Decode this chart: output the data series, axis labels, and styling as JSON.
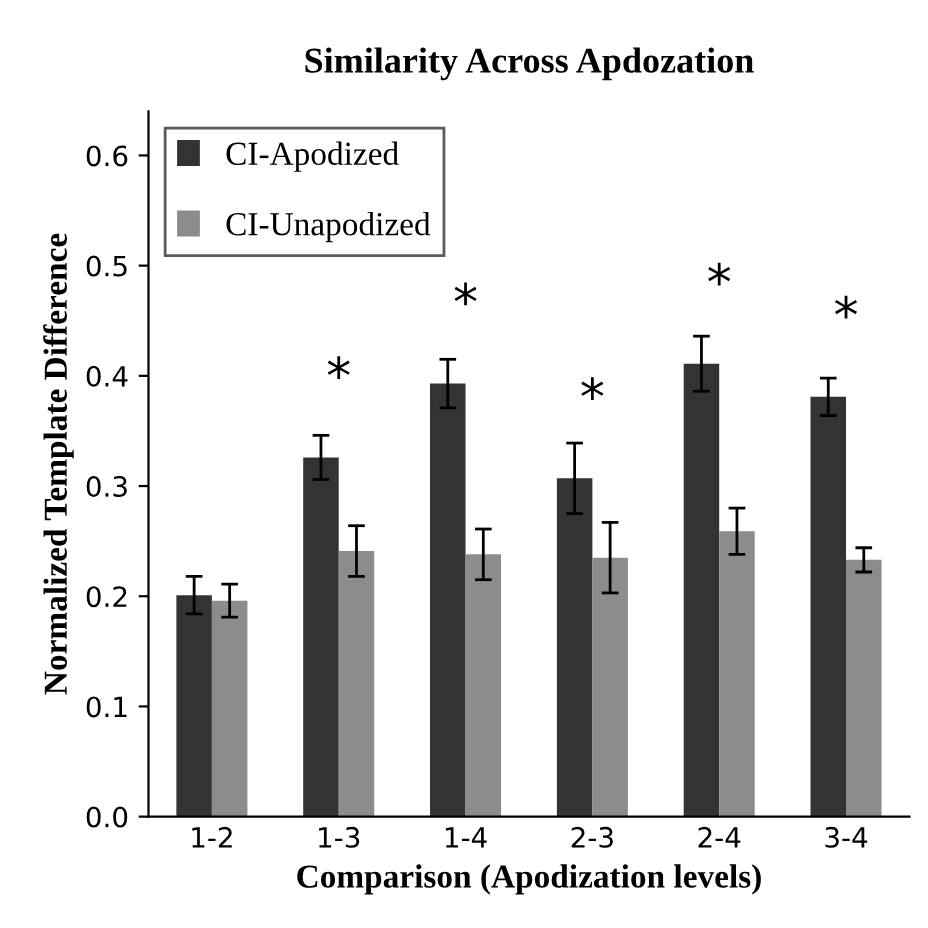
{
  "chart_data": {
    "type": "bar",
    "title": "Similarity Across Apdozation",
    "xlabel": "Comparison (Apodization levels)",
    "ylabel": "Normalized Template Difference",
    "categories": [
      "1-2",
      "1-3",
      "1-4",
      "2-3",
      "2-4",
      "3-4"
    ],
    "series": [
      {
        "name": "CI-Apodized",
        "color": "#333333",
        "values": [
          0.201,
          0.326,
          0.393,
          0.307,
          0.411,
          0.381
        ],
        "errors": [
          0.017,
          0.02,
          0.022,
          0.032,
          0.025,
          0.017
        ]
      },
      {
        "name": "CI-Unapodized",
        "color": "#8c8c8c",
        "values": [
          0.196,
          0.241,
          0.238,
          0.235,
          0.259,
          0.233
        ],
        "errors": [
          0.015,
          0.023,
          0.023,
          0.032,
          0.021,
          0.011
        ]
      }
    ],
    "annotations": [
      {
        "text": "*",
        "x": "1-3",
        "y": 0.326
      },
      {
        "text": "*",
        "x": "1-4",
        "y": 0.393
      },
      {
        "text": "*",
        "x": "2-3",
        "y": 0.307
      },
      {
        "text": "*",
        "x": "2-4",
        "y": 0.411
      },
      {
        "text": "*",
        "x": "3-4",
        "y": 0.381
      }
    ],
    "ylim": [
      0,
      0.64
    ],
    "yticks": [
      {
        "value": 0,
        "label": "0.0"
      },
      {
        "value": 0.1,
        "label": "0.1"
      },
      {
        "value": 0.2,
        "label": "0.2"
      },
      {
        "value": 0.3,
        "label": "0.3"
      },
      {
        "value": 0.4,
        "label": "0.4"
      },
      {
        "value": 0.5,
        "label": "0.5"
      },
      {
        "value": 0.6,
        "label": "0.6"
      }
    ],
    "grid": false,
    "legend": "top left"
  }
}
